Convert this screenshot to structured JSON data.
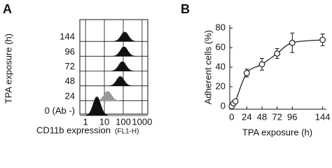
{
  "chart_data": [
    {
      "type": "histogram-stack",
      "panel": "A",
      "ylabel": "TPA exposure (h)",
      "xlabel": "CD11b expression",
      "xlabel_unit": "(FL1-H)",
      "categories": [
        "144",
        "96",
        "72",
        "48",
        "24",
        "0 (Ab -)"
      ],
      "peaks": [
        120,
        110,
        90,
        70,
        15,
        4
      ],
      "colors": [
        "#111111",
        "#111111",
        "#111111",
        "#111111",
        "#999999",
        "#111111"
      ],
      "xlim": [
        0.5,
        2000
      ],
      "xticks": [
        1,
        10,
        100,
        1000
      ],
      "log_x": true,
      "grid": true
    },
    {
      "type": "line",
      "panel": "B",
      "ylabel": "Adherent cells (%)",
      "xlabel": "TPA exposure (h)",
      "x": [
        0,
        3,
        6,
        24,
        48,
        72,
        96,
        144
      ],
      "series": [
        {
          "color": "#111111",
          "values": [
            0,
            3,
            5,
            34,
            43,
            54,
            65,
            68
          ],
          "errors": [
            null,
            null,
            null,
            4,
            6,
            5,
            10,
            6
          ]
        }
      ],
      "xlim": [
        -3,
        150
      ],
      "xticks": [
        0,
        24,
        48,
        72,
        96,
        144
      ],
      "ylim": [
        -3,
        83
      ],
      "yticks": [
        0,
        20,
        40,
        60,
        80
      ]
    }
  ]
}
